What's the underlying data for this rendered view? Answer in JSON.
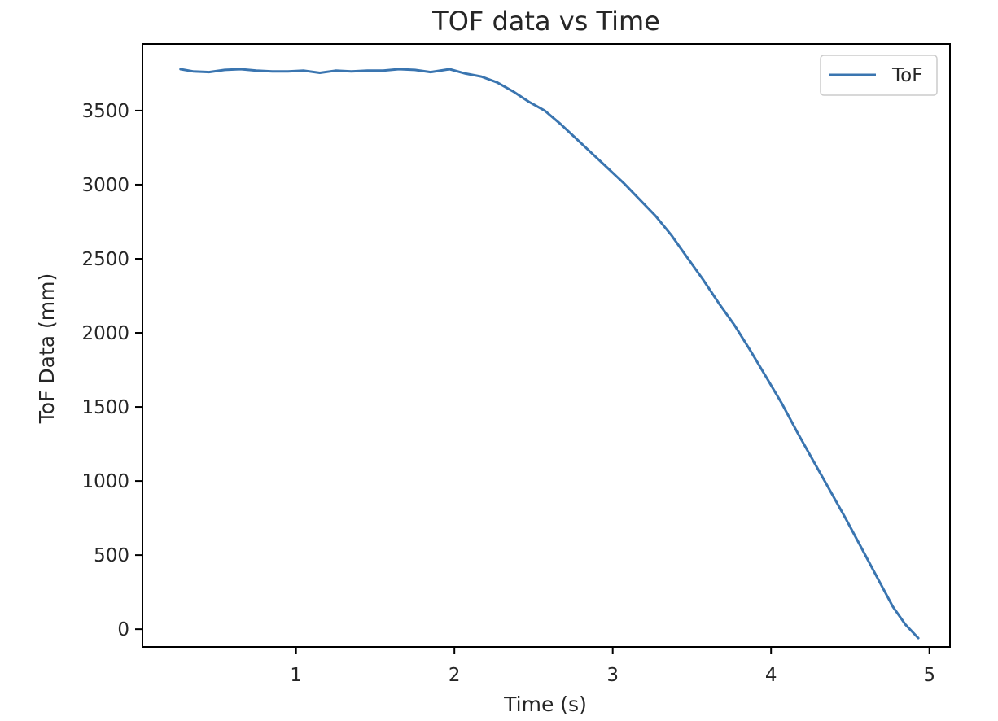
{
  "chart_data": {
    "type": "line",
    "title": "TOF data vs Time",
    "xlabel": "Time (s)",
    "ylabel": "ToF Data (mm)",
    "xlim": [
      0.03,
      5.13
    ],
    "ylim": [
      -120,
      3950
    ],
    "xticks": [
      1,
      2,
      3,
      4,
      5
    ],
    "yticks": [
      0,
      500,
      1000,
      1500,
      2000,
      2500,
      3000,
      3500
    ],
    "grid": false,
    "legend_position": "top-right",
    "series": [
      {
        "name": "ToF",
        "color": "#3a75b0",
        "x": [
          0.27,
          0.35,
          0.45,
          0.55,
          0.65,
          0.75,
          0.85,
          0.95,
          1.05,
          1.15,
          1.25,
          1.35,
          1.45,
          1.55,
          1.65,
          1.75,
          1.85,
          1.97,
          2.07,
          2.17,
          2.27,
          2.37,
          2.47,
          2.57,
          2.67,
          2.77,
          2.87,
          2.97,
          3.07,
          3.17,
          3.27,
          3.37,
          3.47,
          3.57,
          3.67,
          3.77,
          3.87,
          3.97,
          4.07,
          4.17,
          4.27,
          4.37,
          4.47,
          4.57,
          4.67,
          4.77,
          4.85,
          4.93
        ],
        "y": [
          3780,
          3765,
          3760,
          3775,
          3780,
          3770,
          3765,
          3765,
          3770,
          3755,
          3770,
          3765,
          3770,
          3770,
          3780,
          3775,
          3760,
          3780,
          3750,
          3730,
          3690,
          3630,
          3560,
          3500,
          3410,
          3310,
          3210,
          3110,
          3010,
          2900,
          2790,
          2660,
          2510,
          2360,
          2200,
          2050,
          1880,
          1700,
          1520,
          1320,
          1130,
          940,
          750,
          550,
          350,
          150,
          30,
          -60
        ]
      }
    ]
  }
}
